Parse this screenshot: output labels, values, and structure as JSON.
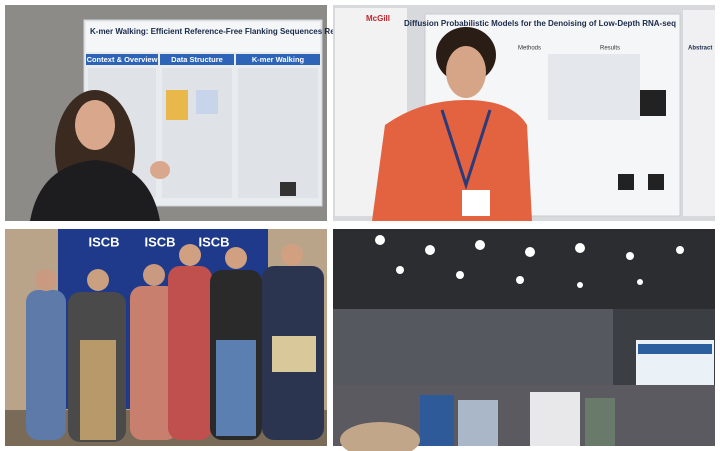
{
  "panels": [
    {
      "poster_title": "K-mer Walking: Efficient Reference-Free Flanking Sequences Reconstruction",
      "sections": [
        "Context & Overview",
        "Data Structure",
        "K-mer Walking"
      ]
    },
    {
      "logo": "McGill",
      "poster_title": "Diffusion Probabilistic Models for the Denoising of Low-Depth RNA-seq",
      "sections": [
        "Methods",
        "Results",
        "Abstract"
      ]
    },
    {
      "banner": "ISCB"
    },
    {}
  ]
}
